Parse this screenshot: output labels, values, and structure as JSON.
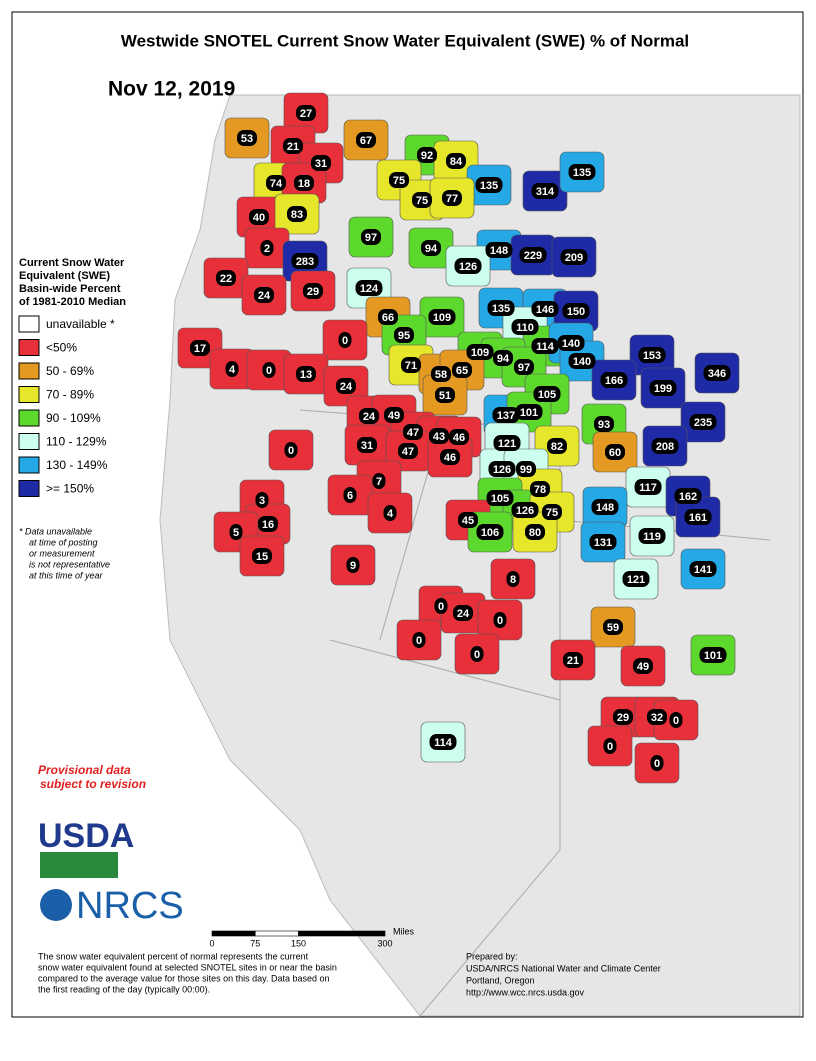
{
  "title": "Westwide SNOTEL Current Snow Water Equivalent (SWE) % of Normal",
  "date": "Nov 12, 2019",
  "legend": {
    "title_lines": [
      "Current Snow Water",
      "Equivalent (SWE)",
      "Basin-wide Percent",
      "of 1981-2010 Median"
    ],
    "items": [
      {
        "label": "unavailable *",
        "color": "#ffffff"
      },
      {
        "label": "<50%",
        "color": "#e8303a"
      },
      {
        "label": "50 - 69%",
        "color": "#e49a22"
      },
      {
        "label": "70 - 89%",
        "color": "#e6e62a"
      },
      {
        "label": "90 - 109%",
        "color": "#5cd92c"
      },
      {
        "label": "110 - 129%",
        "color": "#ccfff0"
      },
      {
        "label": "130 - 149%",
        "color": "#25a8e6"
      },
      {
        "label": ">= 150%",
        "color": "#1e2aa6"
      }
    ]
  },
  "footnote_lines": [
    "*  Data unavailable",
    "at time of posting",
    "or measurement",
    "is not representative",
    "at this time of year"
  ],
  "provisional_lines": [
    "Provisional data",
    "subject to revision"
  ],
  "logos": {
    "usda": "USDA",
    "nrcs": "NRCS"
  },
  "scale": {
    "ticks": [
      0,
      75,
      150,
      300
    ],
    "unit": "Miles"
  },
  "description_lines": [
    "The snow water equivalent percent of normal represents the current",
    "snow water equivalent found at selected SNOTEL sites in or near the basin",
    "compared to the average value for those sites on this day. Data based on",
    "the first reading of the day (typically 00:00)."
  ],
  "prepared_lines": [
    "Prepared by:",
    "USDA/NRCS National Water and Climate Center",
    "Portland, Oregon",
    "http://www.wcc.nrcs.usda.gov"
  ],
  "basin_values": [
    27,
    53,
    67,
    92,
    84,
    21,
    31,
    135,
    314,
    135,
    74,
    18,
    75,
    75,
    77,
    40,
    83,
    97,
    94,
    148,
    229,
    209,
    2,
    283,
    126,
    124,
    22,
    24,
    29,
    135,
    146,
    150,
    66,
    109,
    110,
    0,
    95,
    17,
    114,
    140,
    109,
    94,
    153,
    140,
    4,
    0,
    13,
    71,
    58,
    65,
    97,
    166,
    199,
    346,
    24,
    51,
    105,
    137,
    101,
    24,
    49,
    93,
    235,
    47,
    43,
    46,
    31,
    121,
    82,
    208,
    0,
    47,
    60,
    46,
    126,
    99,
    117,
    7,
    78,
    6,
    162,
    105,
    3,
    148,
    126,
    75,
    161,
    4,
    45,
    16,
    5,
    106,
    80,
    119,
    131,
    15,
    9,
    141,
    121,
    8,
    0,
    24,
    0,
    59,
    0,
    0,
    101,
    21,
    49,
    29,
    32,
    0,
    114,
    0,
    0
  ]
}
